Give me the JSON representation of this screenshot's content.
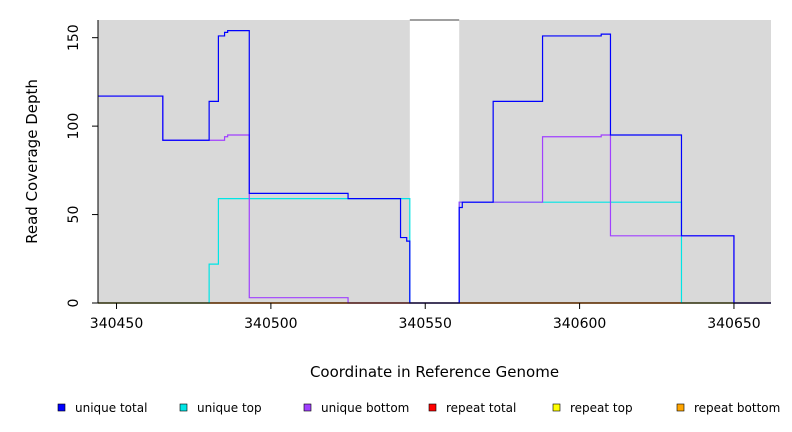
{
  "chart_data": {
    "type": "line",
    "title": "",
    "xlabel": "Coordinate in Reference Genome",
    "ylabel": "Read Coverage Depth",
    "xlim": [
      340444,
      340662
    ],
    "ylim": [
      0,
      160
    ],
    "xticks": [
      340450,
      340500,
      340550,
      340600,
      340650
    ],
    "yticks": [
      0,
      50,
      100,
      150
    ],
    "grid": false,
    "background": "#d9d9d9",
    "gap_region": [
      340545,
      340561
    ],
    "legend_position": "bottom",
    "series": [
      {
        "name": "unique total",
        "color": "#0000ff",
        "step_x": [
          340444,
          340465,
          340480,
          340483,
          340485,
          340486,
          340493,
          340525,
          340542,
          340544,
          340545,
          340561,
          340562,
          340572,
          340588,
          340607,
          340610,
          340633,
          340650,
          340662
        ],
        "step_y": [
          117,
          92,
          114,
          151,
          153,
          154,
          62,
          59,
          37,
          35,
          0,
          54,
          57,
          114,
          151,
          152,
          95,
          38,
          0,
          0
        ]
      },
      {
        "name": "unique top",
        "color": "#00e5e5",
        "step_x": [
          340444,
          340480,
          340483,
          340545,
          340561,
          340633,
          340662
        ],
        "step_y": [
          0,
          22,
          59,
          0,
          57,
          0,
          0
        ]
      },
      {
        "name": "unique bottom",
        "color": "#a040ff",
        "step_x": [
          340444,
          340465,
          340480,
          340485,
          340486,
          340493,
          340525,
          340545,
          340561,
          340588,
          340607,
          340610,
          340633,
          340650,
          340662
        ],
        "step_y": [
          117,
          92,
          92,
          94,
          95,
          3,
          0,
          0,
          57,
          94,
          95,
          38,
          38,
          0,
          0
        ]
      },
      {
        "name": "repeat total",
        "color": "#ff0000",
        "step_x": [
          340444,
          340662
        ],
        "step_y": [
          0,
          0
        ]
      },
      {
        "name": "repeat top",
        "color": "#ffff00",
        "step_x": [
          340444,
          340662
        ],
        "step_y": [
          0,
          0
        ]
      },
      {
        "name": "repeat bottom",
        "color": "#ffa500",
        "step_x": [
          340444,
          340662
        ],
        "step_y": [
          0,
          0
        ]
      }
    ]
  }
}
